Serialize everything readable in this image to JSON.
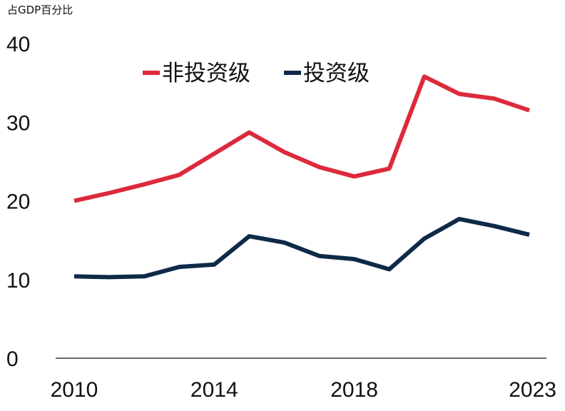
{
  "chart_data": {
    "type": "line",
    "unit_label": "占GDP百分比",
    "x": [
      2010,
      2011,
      2012,
      2013,
      2014,
      2015,
      2016,
      2017,
      2018,
      2019,
      2020,
      2021,
      2022,
      2023
    ],
    "x_tick_labels": [
      "2010",
      "2014",
      "2018",
      "2023"
    ],
    "x_tick_values": [
      2010,
      2014,
      2018,
      2023
    ],
    "y_ticks": [
      0,
      10,
      20,
      30,
      40
    ],
    "ylim": [
      0,
      40
    ],
    "xlim": [
      2010,
      2023
    ],
    "grid": false,
    "legend_position": "top-center",
    "series": [
      {
        "name": "非投资级",
        "color": "#dc2a3c",
        "values": [
          20.0,
          21.0,
          22.1,
          23.3,
          26.0,
          28.7,
          26.2,
          24.3,
          23.1,
          24.1,
          35.8,
          33.6,
          33.0,
          31.5
        ]
      },
      {
        "name": "投资级",
        "color": "#0f2a48",
        "values": [
          10.4,
          10.3,
          10.4,
          11.6,
          11.9,
          15.5,
          14.7,
          13.0,
          12.6,
          11.3,
          15.2,
          17.7,
          16.8,
          15.7
        ]
      }
    ],
    "axis_color": "#111111"
  }
}
